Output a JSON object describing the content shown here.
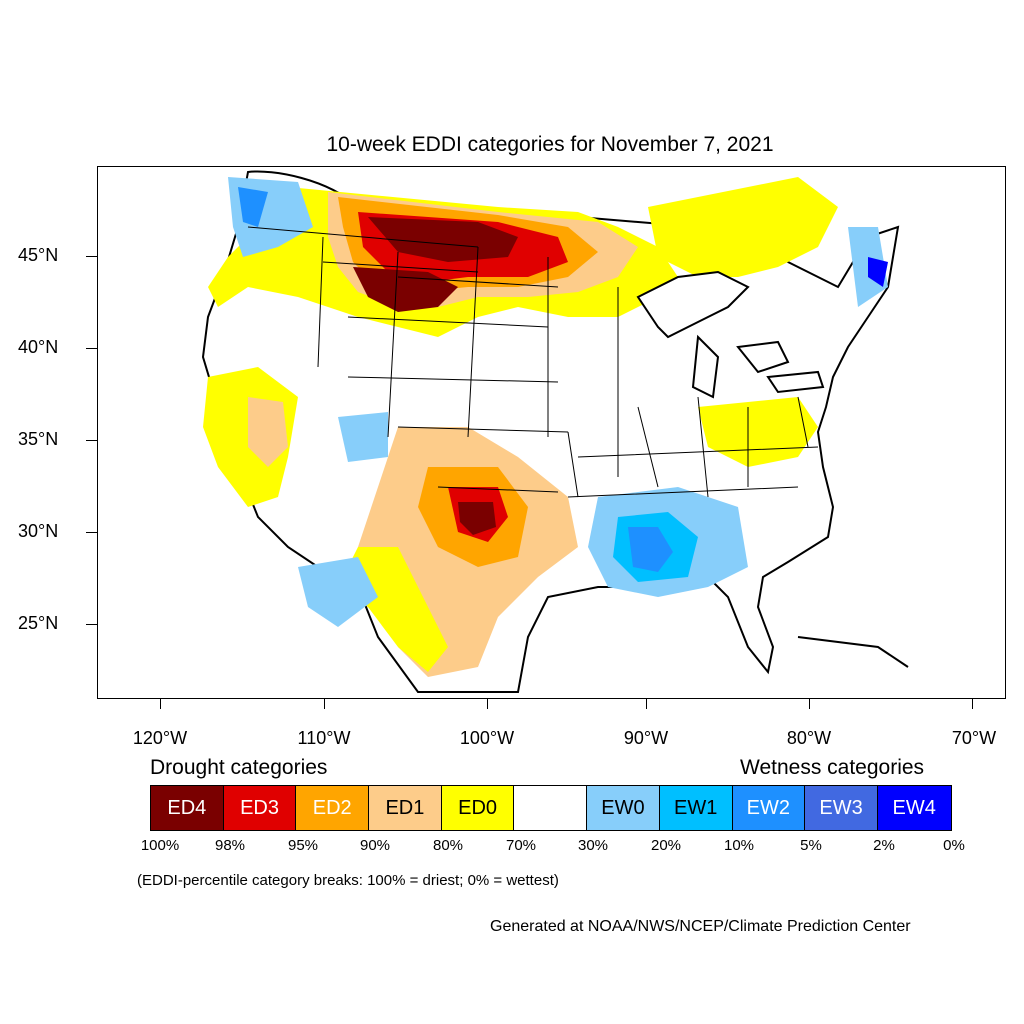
{
  "title": "10-week EDDI categories for November 7, 2021",
  "latitude_labels": [
    "45°N",
    "40°N",
    "35°N",
    "30°N",
    "25°N"
  ],
  "longitude_labels": [
    "120°W",
    "110°W",
    "100°W",
    "90°W",
    "80°W",
    "70°W"
  ],
  "legend": {
    "drought_heading": "Drought categories",
    "wetness_heading": "Wetness categories",
    "categories": [
      {
        "label": "ED4",
        "color": "#7a0000",
        "text_color": "#ffffff"
      },
      {
        "label": "ED3",
        "color": "#e00000",
        "text_color": "#ffffff"
      },
      {
        "label": "ED2",
        "color": "#ffa500",
        "text_color": "#ffffff"
      },
      {
        "label": "ED1",
        "color": "#fdcc8a",
        "text_color": "#000000"
      },
      {
        "label": "ED0",
        "color": "#ffff00",
        "text_color": "#000000"
      },
      {
        "label": "",
        "color": "#ffffff",
        "text_color": "#000000"
      },
      {
        "label": "EW0",
        "color": "#87cefa",
        "text_color": "#000000"
      },
      {
        "label": "EW1",
        "color": "#00bfff",
        "text_color": "#000000"
      },
      {
        "label": "EW2",
        "color": "#1e90ff",
        "text_color": "#ffffff"
      },
      {
        "label": "EW3",
        "color": "#4169e1",
        "text_color": "#ffffff"
      },
      {
        "label": "EW4",
        "color": "#0000ff",
        "text_color": "#ffffff"
      }
    ],
    "percentile_breaks": [
      "100%",
      "98%",
      "95%",
      "90%",
      "80%",
      "70%",
      "30%",
      "20%",
      "10%",
      "5%",
      "2%",
      "0%"
    ]
  },
  "note": "(EDDI-percentile category breaks: 100% = driest; 0% = wettest)",
  "credit": "Generated at NOAA/NWS/NCEP/Climate Prediction Center"
}
